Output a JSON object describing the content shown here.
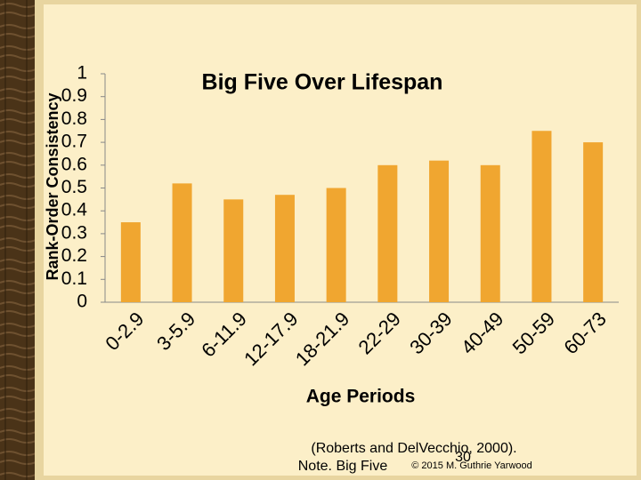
{
  "chart_data": {
    "type": "bar",
    "title": "Big Five Over Lifespan",
    "y_label": "Rank-Order Consistency",
    "x_label": "Age Periods",
    "categories": [
      "0-2.9",
      "3-5.9",
      "6-11.9",
      "12-17.9",
      "18-21.9",
      "22-29",
      "30-39",
      "40-49",
      "50-59",
      "60-73"
    ],
    "values": [
      0.35,
      0.52,
      0.45,
      0.47,
      0.5,
      0.6,
      0.62,
      0.6,
      0.75,
      0.7
    ],
    "color": "#f0a630",
    "ylim": [
      0,
      1
    ],
    "yticks": [
      0,
      0.1,
      0.2,
      0.3,
      0.4,
      0.5,
      0.6,
      0.7,
      0.8,
      0.9,
      1
    ],
    "grid": false
  },
  "slide": {
    "citation": "(Roberts and DelVecchio, 2000).",
    "note": "Note. Big Five",
    "page_number": "30",
    "copyright": "© 2015 M. Guthrie Yarwood"
  }
}
